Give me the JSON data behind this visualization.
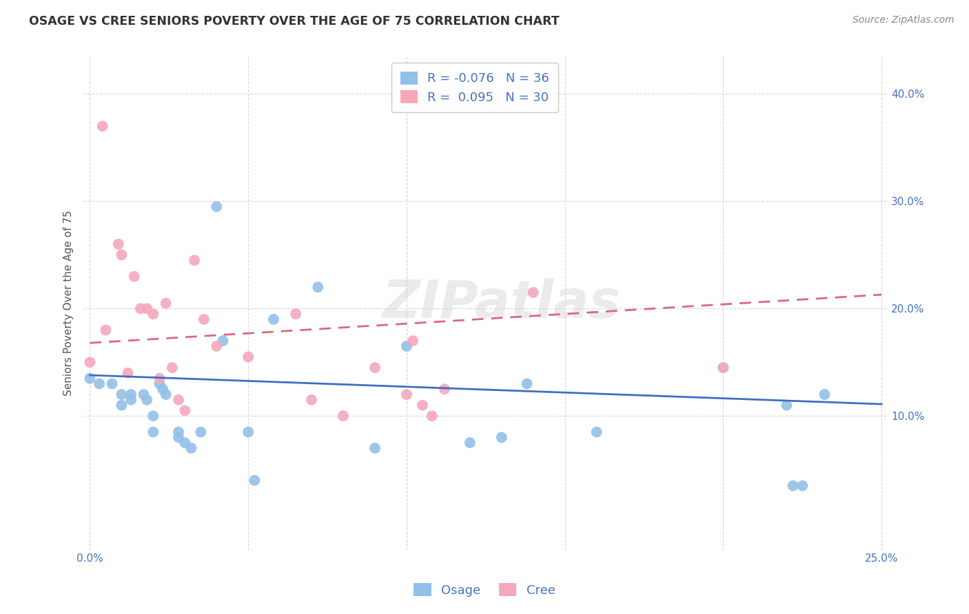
{
  "title": "OSAGE VS CREE SENIORS POVERTY OVER THE AGE OF 75 CORRELATION CHART",
  "source": "Source: ZipAtlas.com",
  "ylabel": "Seniors Poverty Over the Age of 75",
  "watermark": "ZIPatlas",
  "legend_osage": "Osage",
  "legend_cree": "Cree",
  "osage_R": "-0.076",
  "osage_N": "36",
  "cree_R": "0.095",
  "cree_N": "30",
  "xlim": [
    -0.002,
    0.252
  ],
  "ylim": [
    -0.025,
    0.435
  ],
  "xtick_positions": [
    0.0,
    0.05,
    0.1,
    0.15,
    0.2,
    0.25
  ],
  "xtick_labels": [
    "0.0%",
    "",
    "",
    "",
    "",
    "25.0%"
  ],
  "ytick_positions": [
    0.1,
    0.2,
    0.3,
    0.4
  ],
  "ytick_labels": [
    "10.0%",
    "20.0%",
    "30.0%",
    "40.0%"
  ],
  "osage_color": "#92c0e8",
  "cree_color": "#f5a8bc",
  "trend_osage_color": "#3d6fc4",
  "trend_cree_color": "#d9687a",
  "background_color": "#ffffff",
  "grid_color": "#cccccc",
  "title_color": "#333333",
  "axis_tick_color": "#4472c4",
  "ylabel_color": "#555555",
  "osage_x": [
    0.0,
    0.003,
    0.007,
    0.01,
    0.01,
    0.013,
    0.013,
    0.017,
    0.018,
    0.02,
    0.02,
    0.022,
    0.023,
    0.024,
    0.028,
    0.028,
    0.03,
    0.032,
    0.035,
    0.04,
    0.042,
    0.05,
    0.052,
    0.058,
    0.072,
    0.09,
    0.1,
    0.12,
    0.13,
    0.138,
    0.16,
    0.2,
    0.22,
    0.222,
    0.225,
    0.232
  ],
  "osage_y": [
    0.135,
    0.13,
    0.13,
    0.12,
    0.11,
    0.12,
    0.115,
    0.12,
    0.115,
    0.1,
    0.085,
    0.13,
    0.125,
    0.12,
    0.085,
    0.08,
    0.075,
    0.07,
    0.085,
    0.295,
    0.17,
    0.085,
    0.04,
    0.19,
    0.22,
    0.07,
    0.165,
    0.075,
    0.08,
    0.13,
    0.085,
    0.145,
    0.11,
    0.035,
    0.035,
    0.12
  ],
  "cree_x": [
    0.0,
    0.004,
    0.005,
    0.009,
    0.01,
    0.012,
    0.014,
    0.016,
    0.018,
    0.02,
    0.022,
    0.024,
    0.026,
    0.028,
    0.03,
    0.033,
    0.036,
    0.04,
    0.05,
    0.065,
    0.07,
    0.08,
    0.09,
    0.1,
    0.102,
    0.105,
    0.108,
    0.112,
    0.14,
    0.2
  ],
  "cree_y": [
    0.15,
    0.37,
    0.18,
    0.26,
    0.25,
    0.14,
    0.23,
    0.2,
    0.2,
    0.195,
    0.135,
    0.205,
    0.145,
    0.115,
    0.105,
    0.245,
    0.19,
    0.165,
    0.155,
    0.195,
    0.115,
    0.1,
    0.145,
    0.12,
    0.17,
    0.11,
    0.1,
    0.125,
    0.215,
    0.145
  ],
  "osage_trend_x0": 0.0,
  "osage_trend_x1": 0.25,
  "osage_trend_y0": 0.138,
  "osage_trend_y1": 0.111,
  "cree_trend_x0": 0.0,
  "cree_trend_x1": 0.25,
  "cree_trend_y0": 0.168,
  "cree_trend_y1": 0.213,
  "marker_size": 130,
  "title_fontsize": 12.5,
  "axis_label_fontsize": 11,
  "tick_fontsize": 11,
  "legend_fontsize": 13,
  "source_fontsize": 10,
  "watermark_fontsize": 55,
  "watermark_color": "#d8d8d8",
  "watermark_alpha": 0.5
}
